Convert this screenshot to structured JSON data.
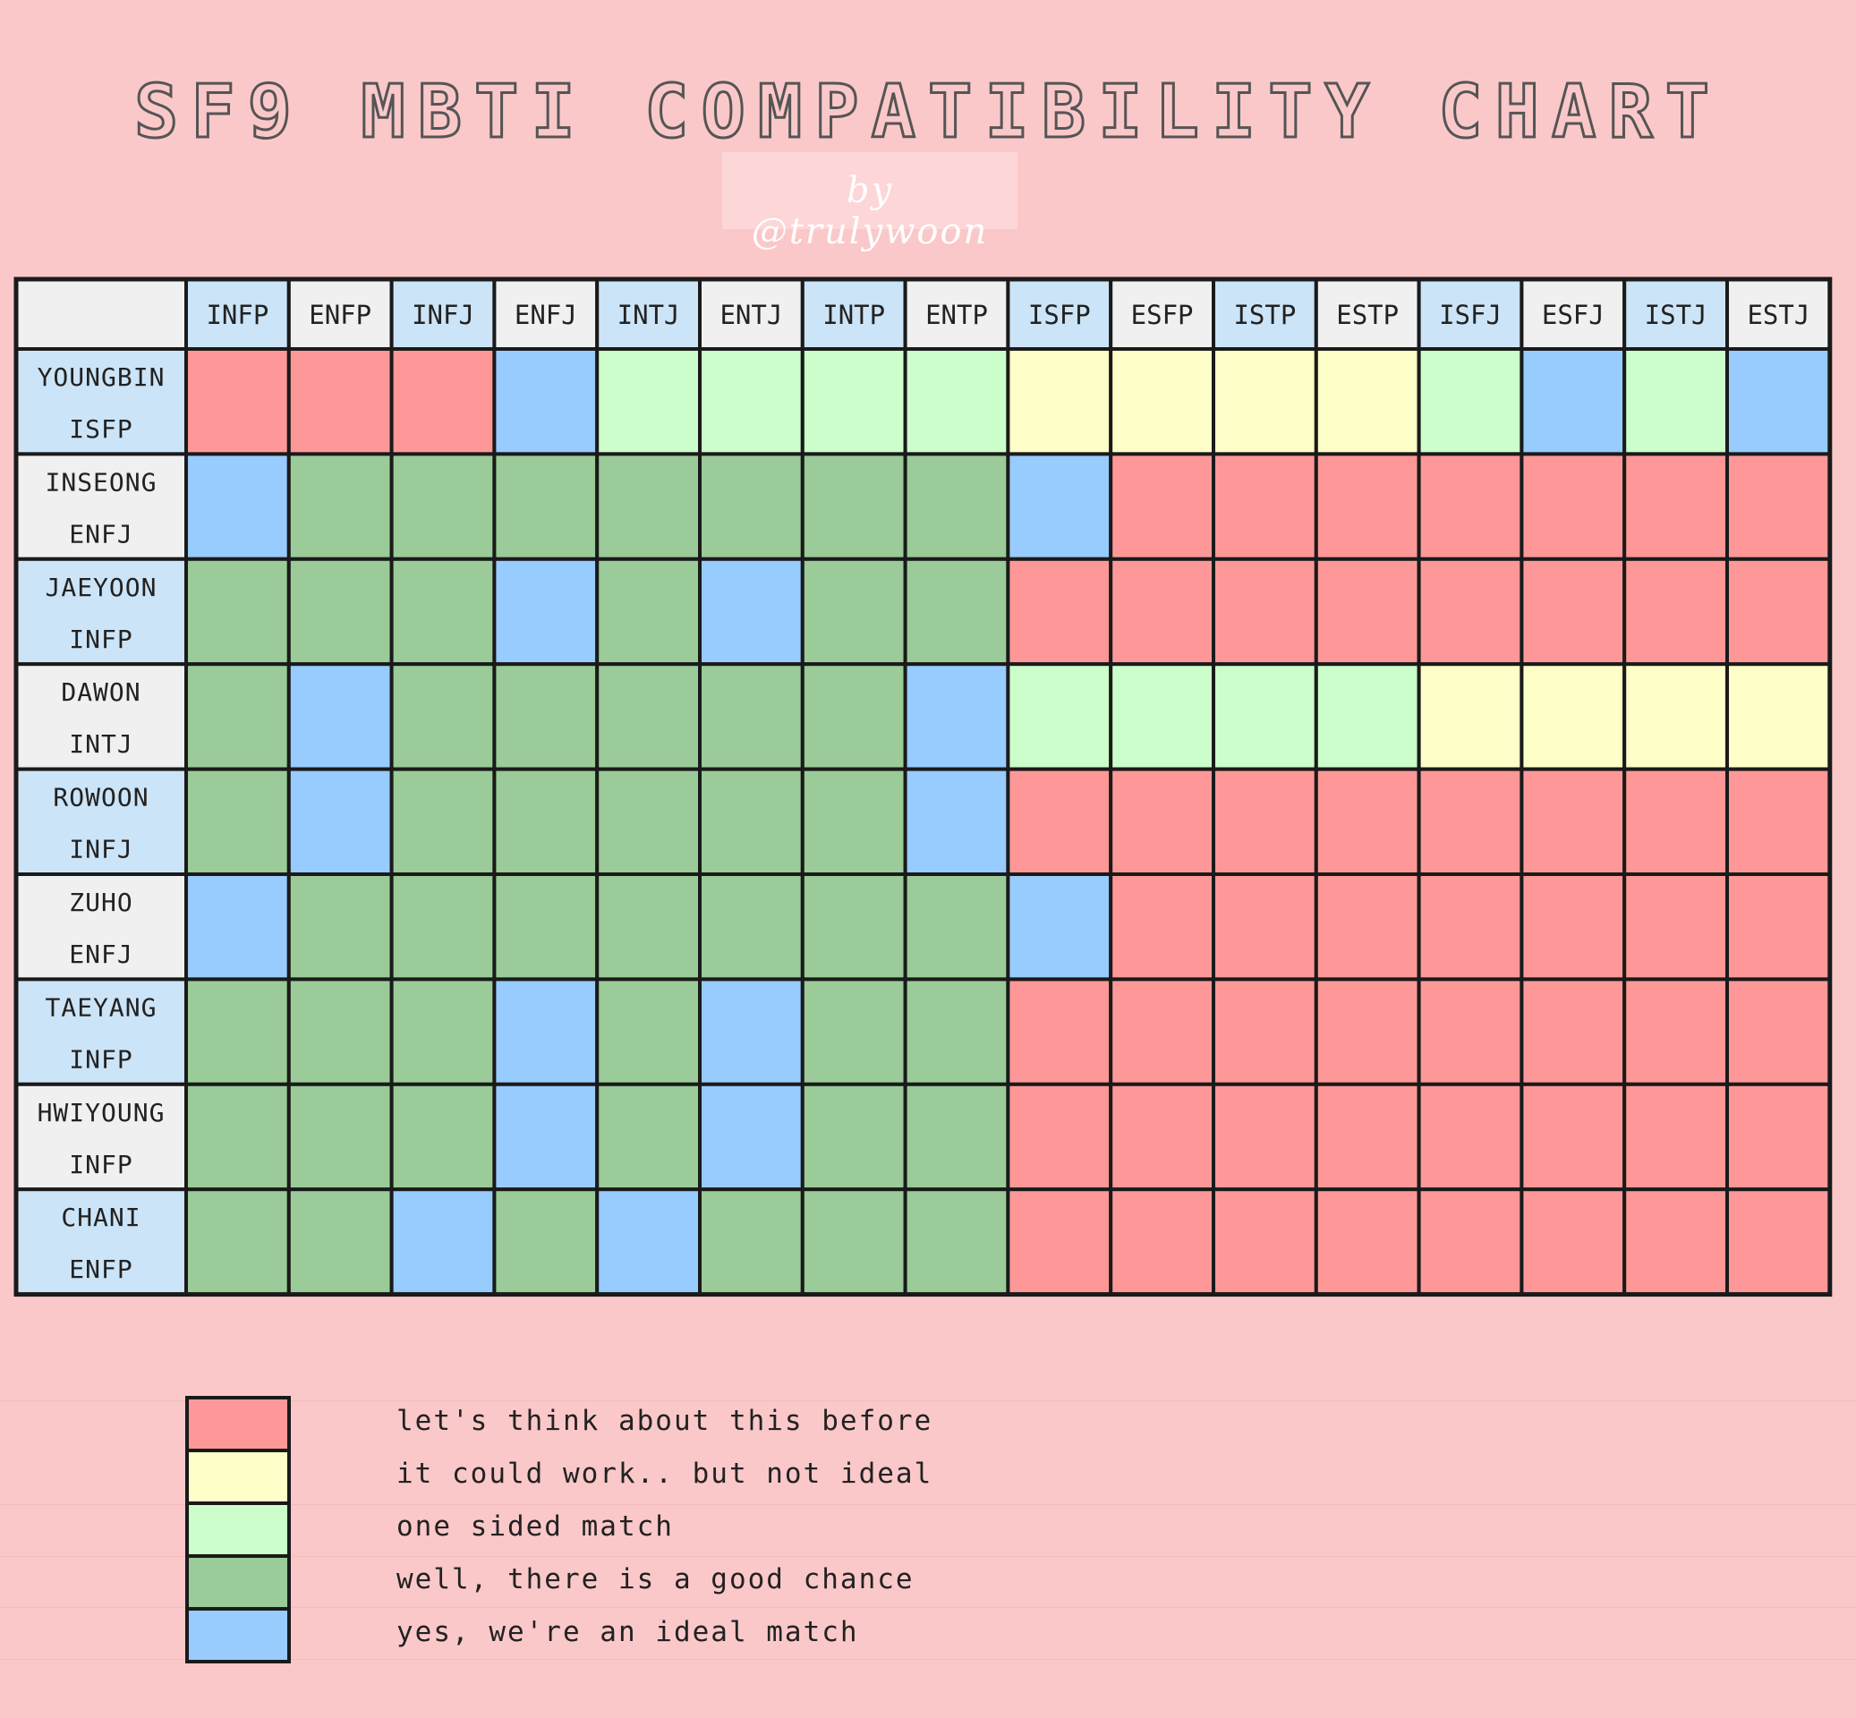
{
  "title": "SF9 MBTI COMPATIBILITY CHART",
  "credit": "by @trulywoon",
  "chart_data": {
    "type": "heatmap",
    "columns": [
      "INFP",
      "ENFP",
      "INFJ",
      "ENFJ",
      "INTJ",
      "ENTJ",
      "INTP",
      "ENTP",
      "ISFP",
      "ESFP",
      "ISTP",
      "ESTP",
      "ISFJ",
      "ESFJ",
      "ISTJ",
      "ESTJ"
    ],
    "rows": [
      {
        "name": "YOUNGBIN",
        "type": "ISFP",
        "levels": [
          1,
          1,
          1,
          5,
          3,
          3,
          3,
          3,
          2,
          2,
          2,
          2,
          3,
          5,
          3,
          5
        ]
      },
      {
        "name": "INSEONG",
        "type": "ENFJ",
        "levels": [
          5,
          4,
          4,
          4,
          4,
          4,
          4,
          4,
          5,
          1,
          1,
          1,
          1,
          1,
          1,
          1
        ]
      },
      {
        "name": "JAEYOON",
        "type": "INFP",
        "levels": [
          4,
          4,
          4,
          5,
          4,
          5,
          4,
          4,
          1,
          1,
          1,
          1,
          1,
          1,
          1,
          1
        ]
      },
      {
        "name": "DAWON",
        "type": "INTJ",
        "levels": [
          4,
          5,
          4,
          4,
          4,
          4,
          4,
          5,
          3,
          3,
          3,
          3,
          2,
          2,
          2,
          2
        ]
      },
      {
        "name": "ROWOON",
        "type": "INFJ",
        "levels": [
          4,
          5,
          4,
          4,
          4,
          4,
          4,
          5,
          1,
          1,
          1,
          1,
          1,
          1,
          1,
          1
        ]
      },
      {
        "name": "ZUHO",
        "type": "ENFJ",
        "levels": [
          5,
          4,
          4,
          4,
          4,
          4,
          4,
          4,
          5,
          1,
          1,
          1,
          1,
          1,
          1,
          1
        ]
      },
      {
        "name": "TAEYANG",
        "type": "INFP",
        "levels": [
          4,
          4,
          4,
          5,
          4,
          5,
          4,
          4,
          1,
          1,
          1,
          1,
          1,
          1,
          1,
          1
        ]
      },
      {
        "name": "HWIYOUNG",
        "type": "INFP",
        "levels": [
          4,
          4,
          4,
          5,
          4,
          5,
          4,
          4,
          1,
          1,
          1,
          1,
          1,
          1,
          1,
          1
        ]
      },
      {
        "name": "CHANI",
        "type": "ENFP",
        "levels": [
          4,
          4,
          5,
          4,
          5,
          4,
          4,
          4,
          1,
          1,
          1,
          1,
          1,
          1,
          1,
          1
        ]
      }
    ],
    "legend": [
      {
        "level": 1,
        "label": "let's think about this before",
        "color": "#fe9898"
      },
      {
        "level": 2,
        "label": "it could work.. but not ideal",
        "color": "#fefec8"
      },
      {
        "level": 3,
        "label": "one sided match",
        "color": "#ccfecb"
      },
      {
        "level": 4,
        "label": "well, there is a good chance",
        "color": "#9acb98"
      },
      {
        "level": 5,
        "label": "yes, we're an ideal match",
        "color": "#98cbfe"
      }
    ],
    "header_colors": {
      "odd": "#cce4f7",
      "even": "#f0f0f0"
    }
  }
}
